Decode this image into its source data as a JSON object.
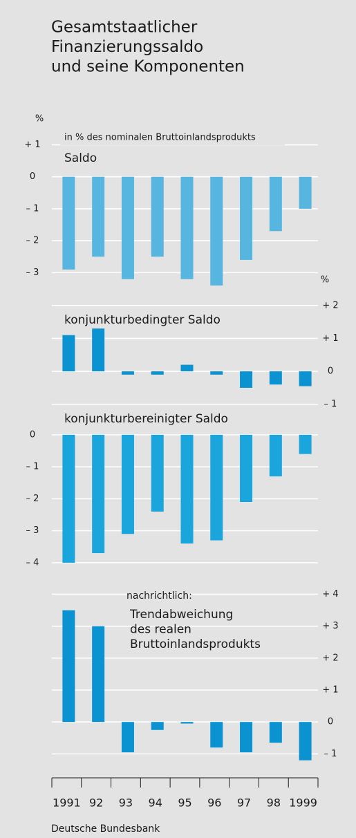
{
  "chart_data": {
    "type": "bar",
    "title": [
      "Gesamtstaatlicher",
      "Finanzierungssaldo",
      "und seine Komponenten"
    ],
    "categories": [
      "1991",
      "92",
      "93",
      "94",
      "95",
      "96",
      "97",
      "98",
      "1999"
    ],
    "source": "Deutsche Bundesbank",
    "grid": true,
    "panels": [
      {
        "note": "in % des nominalen Bruttoinlandsprodukts",
        "label": [
          "Saldo"
        ],
        "unit": "%",
        "axis": "left",
        "color": "#56b6df",
        "values": [
          -2.9,
          -2.5,
          -3.2,
          -2.5,
          -3.2,
          -3.4,
          -2.6,
          -1.7,
          -1.0
        ],
        "ylim": [
          -3.9,
          1.55
        ],
        "yticks": [
          {
            "value": 1,
            "label": "+ 1"
          },
          0,
          {
            "value": -1,
            "label": "– 1"
          },
          {
            "value": -2,
            "label": "– 2"
          },
          {
            "value": -3,
            "label": "– 3"
          }
        ]
      },
      {
        "label": [
          "konjunkturbedingter Saldo"
        ],
        "unit": "%",
        "axis": "right",
        "color": "#0a93d0",
        "values": [
          1.1,
          1.3,
          -0.1,
          -0.1,
          0.2,
          -0.1,
          -0.5,
          -0.4,
          -0.45
        ],
        "ylim": [
          -1.3,
          2.5
        ],
        "yticks": [
          {
            "value": 2,
            "label": "+ 2"
          },
          {
            "value": 1,
            "label": "+ 1"
          },
          0,
          {
            "value": -1,
            "label": "– 1"
          }
        ]
      },
      {
        "label": [
          "konjunkturbereinigter Saldo"
        ],
        "axis": "left",
        "color": "#1aa5dc",
        "values": [
          -4.0,
          -3.7,
          -3.1,
          -2.4,
          -3.4,
          -3.3,
          -2.1,
          -1.3,
          -0.6
        ],
        "ylim": [
          -4.5,
          0.3
        ],
        "yticks": [
          0,
          {
            "value": -1,
            "label": "– 1"
          },
          {
            "value": -2,
            "label": "– 2"
          },
          {
            "value": -3,
            "label": "– 3"
          },
          {
            "value": -4,
            "label": "– 4"
          }
        ]
      },
      {
        "note": "nachrichtlich:",
        "label": [
          "Trendabweichung",
          "des realen",
          "Bruttoinlandsprodukts"
        ],
        "axis": "right",
        "color": "#0a93d0",
        "values": [
          3.5,
          3.0,
          -0.95,
          -0.25,
          -0.05,
          -0.8,
          -0.95,
          -0.65,
          -1.2
        ],
        "ylim": [
          -1.75,
          4.4
        ],
        "yticks": [
          {
            "value": 4,
            "label": "+ 4"
          },
          {
            "value": 3,
            "label": "+ 3"
          },
          {
            "value": 2,
            "label": "+ 2"
          },
          {
            "value": 1,
            "label": "+ 1"
          },
          0,
          {
            "value": -1,
            "label": "– 1"
          }
        ]
      }
    ]
  }
}
